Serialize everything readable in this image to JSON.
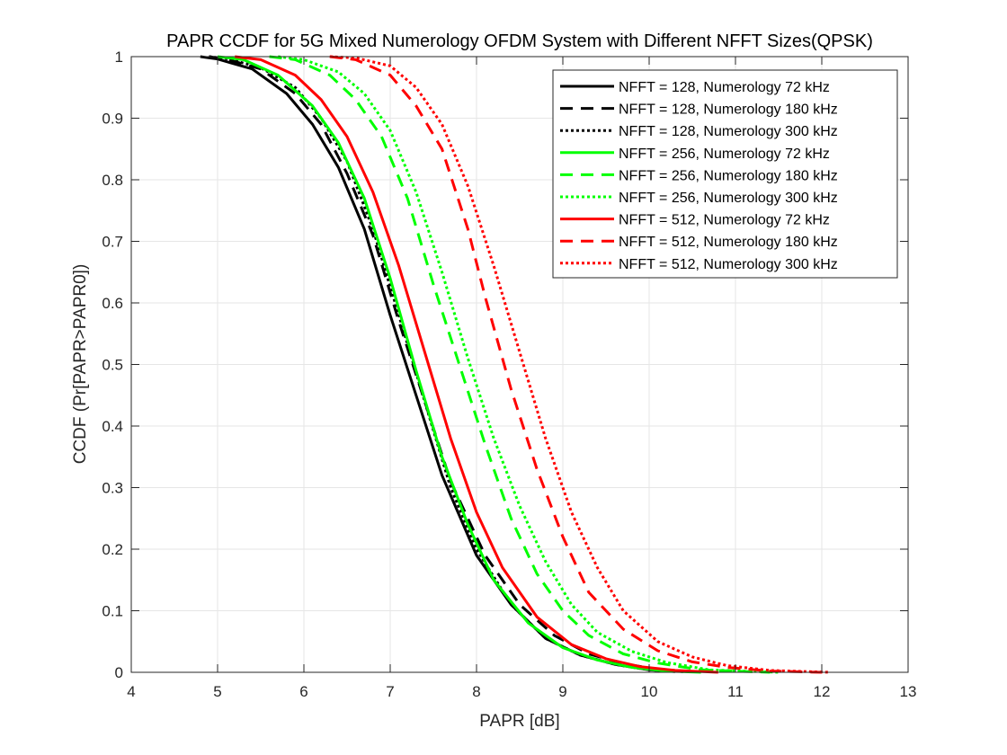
{
  "chart_data": {
    "type": "line",
    "title": "PAPR CCDF for 5G Mixed Numerology OFDM System with Different NFFT Sizes(QPSK)",
    "xlabel": "PAPR [dB]",
    "ylabel": "CCDF (Pr[PAPR>PAPR0])",
    "xlim": [
      4,
      13
    ],
    "ylim": [
      0,
      1
    ],
    "xticks": [
      "4",
      "5",
      "6",
      "7",
      "8",
      "9",
      "10",
      "11",
      "12",
      "13"
    ],
    "yticks": [
      "0",
      "0.1",
      "0.2",
      "0.3",
      "0.4",
      "0.5",
      "0.6",
      "0.7",
      "0.8",
      "0.9",
      "1"
    ],
    "grid": true,
    "legend_position": "top-right",
    "series": [
      {
        "name": "NFFT = 128, Numerology 72 kHz",
        "color": "#000000",
        "style": "solid",
        "x": [
          4.8,
          5.0,
          5.4,
          5.8,
          6.1,
          6.4,
          6.7,
          7.0,
          7.3,
          7.6,
          8.0,
          8.4,
          8.8,
          9.2,
          9.6,
          10.0,
          10.3
        ],
        "y": [
          1.0,
          0.996,
          0.98,
          0.94,
          0.89,
          0.82,
          0.72,
          0.58,
          0.45,
          0.32,
          0.19,
          0.11,
          0.055,
          0.028,
          0.013,
          0.004,
          0.001
        ]
      },
      {
        "name": "NFFT = 128, Numerology 180 kHz",
        "color": "#000000",
        "style": "dashed",
        "x": [
          4.9,
          5.1,
          5.5,
          5.9,
          6.2,
          6.5,
          6.8,
          7.1,
          7.4,
          7.7,
          8.1,
          8.5,
          8.9,
          9.3,
          9.7,
          10.1,
          10.5
        ],
        "y": [
          1.0,
          0.996,
          0.98,
          0.94,
          0.89,
          0.81,
          0.71,
          0.57,
          0.44,
          0.31,
          0.19,
          0.11,
          0.06,
          0.03,
          0.014,
          0.005,
          0.001
        ]
      },
      {
        "name": "NFFT = 128, Numerology 300 kHz",
        "color": "#000000",
        "style": "dotted",
        "x": [
          4.9,
          5.1,
          5.5,
          5.9,
          6.2,
          6.5,
          6.8,
          7.1,
          7.4,
          7.7,
          8.0,
          8.4,
          8.8,
          9.2,
          9.6,
          10.0,
          10.4
        ],
        "y": [
          1.0,
          0.997,
          0.982,
          0.95,
          0.9,
          0.83,
          0.72,
          0.58,
          0.44,
          0.3,
          0.2,
          0.11,
          0.055,
          0.028,
          0.013,
          0.004,
          0.001
        ]
      },
      {
        "name": "NFFT = 256, Numerology 72 kHz",
        "color": "#00ff00",
        "style": "solid",
        "x": [
          5.0,
          5.3,
          5.7,
          6.1,
          6.4,
          6.7,
          7.0,
          7.3,
          7.6,
          7.9,
          8.2,
          8.6,
          9.0,
          9.4,
          9.8,
          10.2,
          10.6
        ],
        "y": [
          1.0,
          0.995,
          0.97,
          0.92,
          0.86,
          0.77,
          0.64,
          0.49,
          0.35,
          0.24,
          0.15,
          0.08,
          0.04,
          0.02,
          0.008,
          0.002,
          0.0
        ]
      },
      {
        "name": "NFFT = 256, Numerology 180 kHz",
        "color": "#00ff00",
        "style": "dashed",
        "x": [
          5.6,
          5.9,
          6.3,
          6.6,
          6.9,
          7.2,
          7.5,
          7.8,
          8.1,
          8.4,
          8.7,
          9.0,
          9.3,
          9.7,
          10.1,
          10.6,
          11.4
        ],
        "y": [
          1.0,
          0.995,
          0.97,
          0.93,
          0.87,
          0.77,
          0.63,
          0.5,
          0.37,
          0.25,
          0.16,
          0.1,
          0.06,
          0.03,
          0.015,
          0.004,
          0.0
        ]
      },
      {
        "name": "NFFT = 256, Numerology 300 kHz",
        "color": "#00ff00",
        "style": "dotted",
        "x": [
          5.7,
          6.0,
          6.4,
          6.7,
          7.0,
          7.3,
          7.6,
          7.9,
          8.2,
          8.5,
          8.8,
          9.1,
          9.4,
          9.8,
          10.2,
          10.7,
          11.5
        ],
        "y": [
          1.0,
          0.995,
          0.975,
          0.94,
          0.88,
          0.78,
          0.65,
          0.51,
          0.38,
          0.27,
          0.18,
          0.11,
          0.065,
          0.034,
          0.016,
          0.004,
          0.0
        ]
      },
      {
        "name": "NFFT = 512, Numerology 72 kHz",
        "color": "#ff0000",
        "style": "solid",
        "x": [
          5.2,
          5.5,
          5.9,
          6.2,
          6.5,
          6.8,
          7.1,
          7.4,
          7.7,
          8.0,
          8.3,
          8.7,
          9.1,
          9.5,
          9.9,
          10.3,
          10.8
        ],
        "y": [
          1.0,
          0.995,
          0.97,
          0.93,
          0.87,
          0.78,
          0.66,
          0.52,
          0.38,
          0.26,
          0.17,
          0.09,
          0.045,
          0.022,
          0.009,
          0.003,
          0.0
        ]
      },
      {
        "name": "NFFT = 512, Numerology 180 kHz",
        "color": "#ff0000",
        "style": "dashed",
        "x": [
          6.3,
          6.6,
          7.0,
          7.3,
          7.6,
          7.9,
          8.1,
          8.4,
          8.7,
          9.0,
          9.3,
          9.7,
          10.1,
          10.5,
          10.9,
          11.4,
          12.0
        ],
        "y": [
          1.0,
          0.995,
          0.97,
          0.92,
          0.85,
          0.72,
          0.61,
          0.46,
          0.33,
          0.22,
          0.13,
          0.07,
          0.035,
          0.017,
          0.008,
          0.002,
          0.0
        ]
      },
      {
        "name": "NFFT = 512, Numerology 300 kHz",
        "color": "#ff0000",
        "style": "dotted",
        "x": [
          6.3,
          6.6,
          7.0,
          7.3,
          7.6,
          7.9,
          8.2,
          8.5,
          8.8,
          9.1,
          9.4,
          9.7,
          10.1,
          10.5,
          10.9,
          11.4,
          12.1
        ],
        "y": [
          1.0,
          0.998,
          0.985,
          0.95,
          0.89,
          0.79,
          0.66,
          0.52,
          0.38,
          0.26,
          0.17,
          0.1,
          0.05,
          0.025,
          0.011,
          0.003,
          0.0
        ]
      }
    ]
  }
}
